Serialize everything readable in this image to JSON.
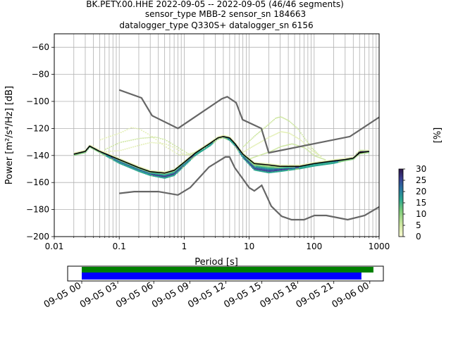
{
  "title": {
    "line1": "BK.PETY.00.HHE   2022-09-05 -- 2022-09-05  (46/46 segments)",
    "line2": "sensor_type MBB-2 sensor_sn 184663",
    "line3": "datalogger_type Q330S+ datalogger_sn 6156"
  },
  "chart_data": {
    "type": "heatmap",
    "xlabel": "Period [s]",
    "ylabel": "Power [m²/s⁴/Hz] [dB]",
    "x_scale": "log",
    "xlim": [
      0.01,
      1000
    ],
    "ylim": [
      -200,
      -50
    ],
    "grid": true,
    "x_ticks": [
      {
        "value": 0.01,
        "label": "0.01"
      },
      {
        "value": 0.1,
        "label": "0.1"
      },
      {
        "value": 1,
        "label": "1"
      },
      {
        "value": 10,
        "label": "10"
      },
      {
        "value": 100,
        "label": "100"
      },
      {
        "value": 1000,
        "label": "1000"
      }
    ],
    "y_ticks": [
      {
        "value": -60,
        "label": "−60"
      },
      {
        "value": -80,
        "label": "−80"
      },
      {
        "value": -100,
        "label": "−100"
      },
      {
        "value": -120,
        "label": "−120"
      },
      {
        "value": -140,
        "label": "−140"
      },
      {
        "value": -160,
        "label": "−160"
      },
      {
        "value": -180,
        "label": "−180"
      },
      {
        "value": -200,
        "label": "−200"
      }
    ],
    "colorbar": {
      "label": "[%]",
      "min": 0,
      "max": 30,
      "ticks": [
        {
          "value": 0,
          "label": "0"
        },
        {
          "value": 5,
          "label": "5"
        },
        {
          "value": 10,
          "label": "10"
        },
        {
          "value": 15,
          "label": "15"
        },
        {
          "value": 20,
          "label": "20"
        },
        {
          "value": 25,
          "label": "25"
        },
        {
          "value": 30,
          "label": "30"
        }
      ]
    },
    "nhnm": [
      [
        0.1,
        -91.5
      ],
      [
        0.22,
        -97.4
      ],
      [
        0.32,
        -110.5
      ],
      [
        0.8,
        -120
      ],
      [
        3.8,
        -98
      ],
      [
        4.6,
        -96.5
      ],
      [
        6.3,
        -101
      ],
      [
        7.9,
        -113.5
      ],
      [
        15.4,
        -120
      ],
      [
        20,
        -138
      ],
      [
        354.8,
        -126
      ],
      [
        10000,
        -80
      ]
    ],
    "nlnm": [
      [
        0.1,
        -168
      ],
      [
        0.17,
        -166.7
      ],
      [
        0.4,
        -166.7
      ],
      [
        0.8,
        -169.2
      ],
      [
        1.24,
        -163.7
      ],
      [
        2.4,
        -148.6
      ],
      [
        4.3,
        -141.1
      ],
      [
        5,
        -141.1
      ],
      [
        6,
        -149
      ],
      [
        10,
        -163.8
      ],
      [
        12,
        -166.2
      ],
      [
        15.6,
        -162.1
      ],
      [
        21.9,
        -177.5
      ],
      [
        31.6,
        -185
      ],
      [
        45,
        -187.5
      ],
      [
        70,
        -187.5
      ],
      [
        101,
        -184.4
      ],
      [
        154,
        -184.4
      ],
      [
        328,
        -187.5
      ],
      [
        600,
        -184.4
      ],
      [
        1000,
        -178
      ],
      [
        10000,
        -143
      ]
    ],
    "mean_curve": [
      [
        0.02,
        -139
      ],
      [
        0.03,
        -137
      ],
      [
        0.035,
        -133
      ],
      [
        0.05,
        -137
      ],
      [
        0.1,
        -143
      ],
      [
        0.2,
        -149
      ],
      [
        0.3,
        -152
      ],
      [
        0.5,
        -153
      ],
      [
        0.7,
        -151
      ],
      [
        1,
        -145
      ],
      [
        1.5,
        -138
      ],
      [
        2.5,
        -131
      ],
      [
        3.3,
        -127
      ],
      [
        4,
        -126
      ],
      [
        5,
        -127
      ],
      [
        6,
        -131
      ],
      [
        8,
        -139
      ],
      [
        12,
        -146
      ],
      [
        20,
        -147
      ],
      [
        30,
        -148
      ],
      [
        60,
        -148
      ],
      [
        100,
        -146
      ],
      [
        200,
        -144
      ],
      [
        300,
        -143
      ],
      [
        400,
        -142
      ],
      [
        500,
        -138
      ],
      [
        700,
        -137
      ]
    ],
    "mode_curve": [
      [
        0.02,
        -139
      ],
      [
        0.03,
        -137
      ],
      [
        0.035,
        -133
      ],
      [
        0.05,
        -137
      ],
      [
        0.1,
        -145
      ],
      [
        0.2,
        -151
      ],
      [
        0.3,
        -154
      ],
      [
        0.5,
        -156
      ],
      [
        0.7,
        -154
      ],
      [
        1,
        -147
      ],
      [
        1.5,
        -139
      ],
      [
        2.5,
        -132
      ],
      [
        3.3,
        -127
      ],
      [
        4,
        -126
      ],
      [
        5,
        -128
      ],
      [
        6,
        -132
      ],
      [
        8,
        -141
      ],
      [
        12,
        -150
      ],
      [
        20,
        -152
      ],
      [
        30,
        -151
      ],
      [
        60,
        -149
      ],
      [
        100,
        -147
      ],
      [
        200,
        -145
      ],
      [
        300,
        -143
      ],
      [
        400,
        -142
      ],
      [
        500,
        -137
      ],
      [
        700,
        -137
      ]
    ],
    "outlier_curves": [
      [
        [
          0.05,
          -128
        ],
        [
          0.1,
          -123
        ],
        [
          0.15,
          -119
        ],
        [
          0.2,
          -120
        ],
        [
          0.3,
          -125
        ],
        [
          0.5,
          -133
        ],
        [
          0.8,
          -139
        ],
        [
          1.2,
          -139
        ],
        [
          2,
          -133
        ],
        [
          3,
          -127
        ],
        [
          4,
          -125
        ]
      ],
      [
        [
          0.06,
          -135
        ],
        [
          0.1,
          -130
        ],
        [
          0.2,
          -127
        ],
        [
          0.35,
          -126
        ],
        [
          0.5,
          -128
        ],
        [
          0.8,
          -134
        ],
        [
          1.2,
          -139
        ],
        [
          2,
          -134
        ],
        [
          3,
          -127
        ],
        [
          4,
          -126
        ]
      ],
      [
        [
          0.05,
          -137
        ],
        [
          0.1,
          -136
        ],
        [
          0.2,
          -132
        ],
        [
          0.3,
          -130
        ],
        [
          0.5,
          -131
        ],
        [
          0.7,
          -134
        ],
        [
          1,
          -139
        ],
        [
          1.5,
          -137
        ],
        [
          2.5,
          -130
        ],
        [
          4,
          -126
        ]
      ],
      [
        [
          8,
          -133
        ],
        [
          12,
          -125
        ],
        [
          18,
          -118
        ],
        [
          25,
          -112
        ],
        [
          30,
          -111
        ],
        [
          40,
          -114
        ],
        [
          55,
          -120
        ],
        [
          70,
          -127
        ],
        [
          90,
          -134
        ],
        [
          120,
          -140
        ]
      ],
      [
        [
          8,
          -137
        ],
        [
          12,
          -132
        ],
        [
          20,
          -126
        ],
        [
          30,
          -122
        ],
        [
          40,
          -123
        ],
        [
          60,
          -128
        ],
        [
          90,
          -136
        ],
        [
          130,
          -141
        ]
      ],
      [
        [
          10,
          -142
        ],
        [
          20,
          -137
        ],
        [
          30,
          -133
        ],
        [
          45,
          -131
        ],
        [
          70,
          -134
        ],
        [
          100,
          -140
        ],
        [
          150,
          -143
        ]
      ]
    ],
    "timeline": {
      "ticks": [
        "09-05 00",
        "09-05 03",
        "09-05 06",
        "09-05 09",
        "09-05 12",
        "09-05 15",
        "09-05 18",
        "09-05 21",
        "09-06 00"
      ],
      "data_coverage_hours": [
        0,
        24.3
      ],
      "psd_coverage_hours": [
        0,
        23.3
      ]
    }
  },
  "colors": {
    "nhnm": "#666666",
    "nlnm": "#666666",
    "mean": "#000000",
    "grid": "#b0b0b0",
    "data_bar": "#008000",
    "psd_bar": "#0000ff"
  }
}
